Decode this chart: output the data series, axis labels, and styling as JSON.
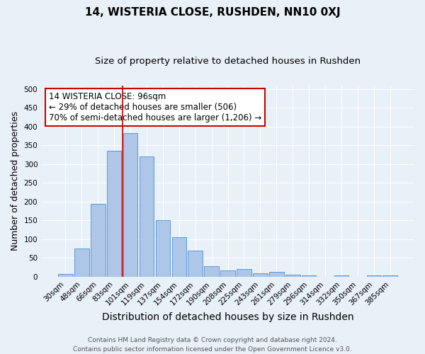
{
  "title": "14, WISTERIA CLOSE, RUSHDEN, NN10 0XJ",
  "subtitle": "Size of property relative to detached houses in Rushden",
  "xlabel": "Distribution of detached houses by size in Rushden",
  "ylabel": "Number of detached properties",
  "footer_line1": "Contains HM Land Registry data © Crown copyright and database right 2024.",
  "footer_line2": "Contains public sector information licensed under the Open Government Licence v3.0.",
  "categories": [
    "30sqm",
    "48sqm",
    "66sqm",
    "83sqm",
    "101sqm",
    "119sqm",
    "137sqm",
    "154sqm",
    "172sqm",
    "190sqm",
    "208sqm",
    "225sqm",
    "243sqm",
    "261sqm",
    "279sqm",
    "296sqm",
    "314sqm",
    "332sqm",
    "350sqm",
    "367sqm",
    "385sqm"
  ],
  "values": [
    8,
    75,
    195,
    335,
    383,
    320,
    150,
    105,
    70,
    28,
    17,
    20,
    10,
    13,
    5,
    3,
    0,
    3,
    0,
    3,
    3
  ],
  "bar_color": "#aec6e8",
  "bar_edge_color": "#5b9bd5",
  "background_color": "#e8f0f8",
  "grid_color": "#ffffff",
  "red_line_index": 4,
  "annotation_text": "14 WISTERIA CLOSE: 96sqm\n← 29% of detached houses are smaller (506)\n70% of semi-detached houses are larger (1,206) →",
  "annotation_box_color": "#ffffff",
  "annotation_box_edge_color": "#cc0000",
  "ylim": [
    0,
    510
  ],
  "title_fontsize": 11,
  "subtitle_fontsize": 9.5,
  "xlabel_fontsize": 10,
  "ylabel_fontsize": 9,
  "tick_fontsize": 7.5,
  "annotation_fontsize": 8.5,
  "footer_fontsize": 6.5
}
